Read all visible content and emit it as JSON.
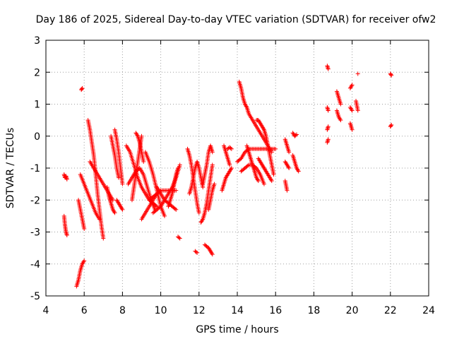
{
  "chart_data": {
    "type": "scatter",
    "title": "Day 186 of 2025, Sidereal Day-to-day VTEC variation (SDTVAR) for receiver ofw2",
    "xlabel": "GPS time / hours",
    "ylabel": "SDTVAR / TECUs",
    "xlim": [
      4,
      24
    ],
    "ylim": [
      -5,
      3
    ],
    "x_ticks": [
      4,
      6,
      8,
      10,
      12,
      14,
      16,
      18,
      20,
      22,
      24
    ],
    "y_ticks": [
      -5,
      -4,
      -3,
      -2,
      -1,
      0,
      1,
      2,
      3
    ],
    "x_tick_labels": [
      "4",
      "6",
      "8",
      "10",
      "12",
      "14",
      "16",
      "18",
      "20",
      "22",
      "24"
    ],
    "y_tick_labels": [
      "-5",
      "-4",
      "-3",
      "-2",
      "-1",
      "0",
      "1",
      "2",
      "3"
    ],
    "grid": true,
    "marker": "plus",
    "marker_color": "#ff0000",
    "segments": [
      {
        "x": [
          4.95,
          5.0,
          5.05,
          5.1
        ],
        "y": [
          -1.2,
          -1.3,
          -1.25,
          -1.35
        ]
      },
      {
        "x": [
          4.95,
          5.0,
          5.05,
          5.1
        ],
        "y": [
          -2.5,
          -2.8,
          -3.0,
          -3.1
        ]
      },
      {
        "x": [
          5.7,
          5.8,
          5.9,
          6.0
        ],
        "y": [
          -2.0,
          -2.3,
          -2.6,
          -2.9
        ]
      },
      {
        "x": [
          5.6,
          5.7,
          5.8,
          5.9,
          6.0
        ],
        "y": [
          -4.7,
          -4.5,
          -4.2,
          -4.0,
          -3.9
        ]
      },
      {
        "x": [
          5.85,
          5.9
        ],
        "y": [
          1.45,
          1.5
        ]
      },
      {
        "x": [
          5.8,
          6.0,
          6.2,
          6.4,
          6.6,
          6.8
        ],
        "y": [
          -1.2,
          -1.5,
          -1.8,
          -2.1,
          -2.4,
          -2.6
        ]
      },
      {
        "x": [
          6.2,
          6.3,
          6.4,
          6.5,
          6.6,
          6.7,
          6.8,
          6.9,
          7.0
        ],
        "y": [
          0.5,
          0.2,
          -0.2,
          -0.6,
          -1.2,
          -1.8,
          -2.3,
          -2.8,
          -3.2
        ]
      },
      {
        "x": [
          6.3,
          6.5,
          6.7,
          6.9,
          7.1,
          7.3,
          7.5
        ],
        "y": [
          -0.8,
          -1.0,
          -1.2,
          -1.4,
          -1.6,
          -1.8,
          -2.0
        ]
      },
      {
        "x": [
          7.2,
          7.3,
          7.4,
          7.5,
          7.6
        ],
        "y": [
          -1.6,
          -1.9,
          -2.1,
          -2.3,
          -2.4
        ]
      },
      {
        "x": [
          7.4,
          7.5,
          7.6,
          7.7,
          7.8
        ],
        "y": [
          0.0,
          -0.3,
          -0.6,
          -1.0,
          -1.3
        ]
      },
      {
        "x": [
          7.6,
          7.7,
          7.8,
          7.9,
          8.0
        ],
        "y": [
          0.2,
          -0.1,
          -0.5,
          -1.0,
          -1.5
        ]
      },
      {
        "x": [
          7.7,
          7.8,
          7.9,
          8.0
        ],
        "y": [
          -2.0,
          -2.1,
          -2.2,
          -2.3
        ]
      },
      {
        "x": [
          8.2,
          8.4,
          8.6,
          8.8,
          9.0,
          9.2,
          9.4,
          9.6,
          9.8
        ],
        "y": [
          -0.3,
          -0.5,
          -0.9,
          -1.3,
          -1.6,
          -1.8,
          -2.0,
          -2.1,
          -2.2
        ]
      },
      {
        "x": [
          8.3,
          8.5,
          8.7,
          8.9,
          9.1,
          9.3,
          9.5,
          9.7
        ],
        "y": [
          -1.5,
          -1.3,
          -1.1,
          -1.0,
          -1.2,
          -1.6,
          -2.0,
          -2.3
        ]
      },
      {
        "x": [
          8.5,
          8.6,
          8.7,
          8.8,
          8.9,
          9.0
        ],
        "y": [
          -2.0,
          -1.6,
          -1.2,
          -0.8,
          -0.4,
          0.0
        ]
      },
      {
        "x": [
          8.7,
          8.8,
          8.9,
          9.0,
          9.1
        ],
        "y": [
          0.1,
          0.0,
          -0.2,
          -0.5,
          -0.8
        ]
      },
      {
        "x": [
          9.0,
          9.2,
          9.4,
          9.6,
          9.8
        ],
        "y": [
          -2.6,
          -2.4,
          -2.2,
          -2.0,
          -1.8
        ]
      },
      {
        "x": [
          9.2,
          9.4,
          9.6,
          9.8,
          10.0,
          10.2
        ],
        "y": [
          -0.5,
          -0.8,
          -1.2,
          -1.7,
          -2.2,
          -2.5
        ]
      },
      {
        "x": [
          9.4,
          9.6,
          9.8,
          10.0,
          10.2,
          10.4,
          10.6,
          10.8
        ],
        "y": [
          -2.0,
          -1.9,
          -1.8,
          -1.7,
          -1.7,
          -1.7,
          -1.7,
          -1.7
        ]
      },
      {
        "x": [
          9.6,
          9.8,
          10.0,
          10.2,
          10.4,
          10.6,
          10.8,
          11.0
        ],
        "y": [
          -2.4,
          -2.3,
          -2.2,
          -2.0,
          -1.8,
          -1.6,
          -1.3,
          -0.9
        ]
      },
      {
        "x": [
          9.8,
          10.0,
          10.2,
          10.4,
          10.6,
          10.8
        ],
        "y": [
          -1.6,
          -1.8,
          -2.0,
          -2.1,
          -2.2,
          -2.3
        ]
      },
      {
        "x": [
          10.4,
          10.5,
          10.6,
          10.7,
          10.8,
          10.9
        ],
        "y": [
          -2.2,
          -2.0,
          -1.8,
          -1.5,
          -1.2,
          -1.0
        ]
      },
      {
        "x": [
          10.9,
          11.0
        ],
        "y": [
          -3.15,
          -3.2
        ]
      },
      {
        "x": [
          11.4,
          11.5,
          11.6,
          11.7,
          11.8,
          11.9,
          12.0
        ],
        "y": [
          -0.4,
          -0.6,
          -0.9,
          -1.3,
          -1.7,
          -2.1,
          -2.4
        ]
      },
      {
        "x": [
          11.5,
          11.6,
          11.7,
          11.8,
          11.9,
          12.0,
          12.1,
          12.2
        ],
        "y": [
          -1.8,
          -1.6,
          -1.3,
          -1.0,
          -0.8,
          -1.0,
          -1.3,
          -1.6
        ]
      },
      {
        "x": [
          11.8,
          11.9
        ],
        "y": [
          -3.6,
          -3.65
        ]
      },
      {
        "x": [
          12.1,
          12.2,
          12.3,
          12.4,
          12.5,
          12.6,
          12.7
        ],
        "y": [
          -2.7,
          -2.6,
          -2.4,
          -2.1,
          -1.7,
          -1.3,
          -0.9
        ]
      },
      {
        "x": [
          12.2,
          12.3,
          12.4,
          12.5,
          12.6,
          12.7
        ],
        "y": [
          -1.5,
          -1.2,
          -0.9,
          -0.5,
          -0.3,
          -0.5
        ]
      },
      {
        "x": [
          12.3,
          12.4,
          12.5,
          12.6,
          12.7
        ],
        "y": [
          -3.4,
          -3.45,
          -3.5,
          -3.6,
          -3.7
        ]
      },
      {
        "x": [
          12.5,
          12.6,
          12.7,
          12.8
        ],
        "y": [
          -2.3,
          -2.0,
          -1.7,
          -1.5
        ]
      },
      {
        "x": [
          13.2,
          13.3,
          13.4,
          13.5,
          13.6,
          13.7
        ],
        "y": [
          -1.7,
          -1.5,
          -1.3,
          -1.2,
          -1.1,
          -1.0
        ]
      },
      {
        "x": [
          13.3,
          13.4,
          13.5,
          13.6
        ],
        "y": [
          -0.3,
          -0.5,
          -0.7,
          -0.9
        ]
      },
      {
        "x": [
          13.5,
          13.6,
          13.7
        ],
        "y": [
          -0.4,
          -0.35,
          -0.4
        ]
      },
      {
        "x": [
          14.1,
          14.2,
          14.3,
          14.4,
          14.5,
          14.6,
          14.8,
          15.0,
          15.2,
          15.4,
          15.6,
          15.8
        ],
        "y": [
          1.7,
          1.5,
          1.2,
          1.0,
          0.9,
          0.7,
          0.5,
          0.3,
          0.1,
          -0.1,
          -0.3,
          -0.5
        ]
      },
      {
        "x": [
          14.0,
          14.2,
          14.4,
          14.6,
          14.8,
          15.0,
          15.2,
          15.4,
          15.6,
          15.8,
          16.0
        ],
        "y": [
          -0.8,
          -0.7,
          -0.5,
          -0.4,
          -0.4,
          -0.4,
          -0.4,
          -0.4,
          -0.4,
          -0.4,
          -0.4
        ]
      },
      {
        "x": [
          14.2,
          14.4,
          14.6,
          14.8,
          15.0,
          15.2,
          15.4
        ],
        "y": [
          -1.1,
          -1.0,
          -0.9,
          -0.9,
          -1.0,
          -1.2,
          -1.5
        ]
      },
      {
        "x": [
          14.5,
          14.6,
          14.7,
          14.8,
          14.9,
          15.0,
          15.1
        ],
        "y": [
          -0.3,
          -0.5,
          -0.7,
          -0.9,
          -1.1,
          -1.3,
          -1.4
        ]
      },
      {
        "x": [
          15.0,
          15.1,
          15.2,
          15.3,
          15.4,
          15.5,
          15.6,
          15.7,
          15.8,
          15.9
        ],
        "y": [
          0.5,
          0.5,
          0.4,
          0.3,
          0.2,
          0.0,
          -0.3,
          -0.6,
          -0.9,
          -1.2
        ]
      },
      {
        "x": [
          15.1,
          15.2,
          15.3,
          15.4,
          15.5,
          15.6,
          15.7,
          15.8
        ],
        "y": [
          -0.7,
          -0.8,
          -0.9,
          -1.0,
          -1.1,
          -1.2,
          -1.3,
          -1.4
        ]
      },
      {
        "x": [
          16.5,
          16.6,
          16.7
        ],
        "y": [
          -0.1,
          -0.3,
          -0.5
        ]
      },
      {
        "x": [
          16.5,
          16.6,
          16.7
        ],
        "y": [
          -0.8,
          -0.9,
          -1.0
        ]
      },
      {
        "x": [
          16.5,
          16.6
        ],
        "y": [
          -1.4,
          -1.7
        ]
      },
      {
        "x": [
          16.9,
          17.0,
          17.1
        ],
        "y": [
          0.1,
          0.0,
          0.05
        ]
      },
      {
        "x": [
          16.9,
          17.0,
          17.1,
          17.2
        ],
        "y": [
          -0.6,
          -0.8,
          -1.0,
          -1.1
        ]
      },
      {
        "x": [
          18.7,
          18.75
        ],
        "y": [
          2.2,
          2.1
        ]
      },
      {
        "x": [
          18.7,
          18.75
        ],
        "y": [
          0.9,
          0.8
        ]
      },
      {
        "x": [
          18.7,
          18.75
        ],
        "y": [
          0.2,
          0.3
        ]
      },
      {
        "x": [
          18.7,
          18.75
        ],
        "y": [
          -0.2,
          -0.1
        ]
      },
      {
        "x": [
          19.2,
          19.3,
          19.4
        ],
        "y": [
          1.4,
          1.2,
          1.0
        ]
      },
      {
        "x": [
          19.2,
          19.3,
          19.4
        ],
        "y": [
          0.8,
          0.6,
          0.5
        ]
      },
      {
        "x": [
          19.9,
          20.0
        ],
        "y": [
          1.5,
          1.6
        ]
      },
      {
        "x": [
          19.9,
          20.0
        ],
        "y": [
          0.9,
          0.8
        ]
      },
      {
        "x": [
          19.9,
          20.0
        ],
        "y": [
          0.4,
          0.2
        ]
      },
      {
        "x": [
          20.3
        ],
        "y": [
          1.95
        ]
      },
      {
        "x": [
          20.2,
          20.3
        ],
        "y": [
          1.1,
          0.8
        ]
      },
      {
        "x": [
          22.0,
          22.05
        ],
        "y": [
          1.95,
          1.9
        ]
      },
      {
        "x": [
          22.0,
          22.05
        ],
        "y": [
          0.3,
          0.35
        ]
      }
    ]
  }
}
